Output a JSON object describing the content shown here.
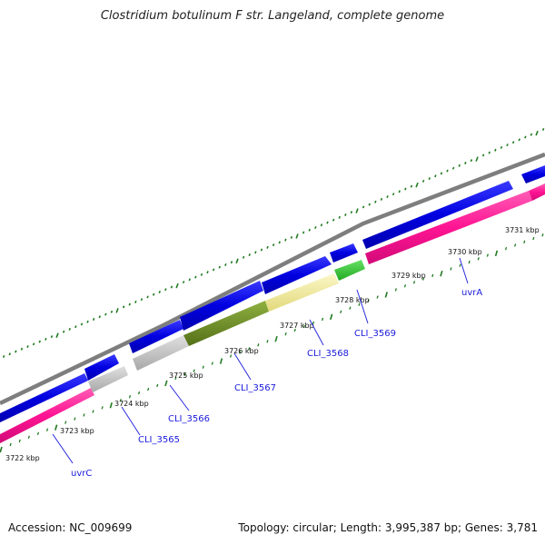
{
  "title": "Clostridium botulinum F str. Langeland, complete genome",
  "footer": {
    "accession": "Accession: NC_009699",
    "summary": "Topology: circular; Length: 3,995,387 bp; Genes: 3,781"
  },
  "colors": {
    "backbone": "#8a8a8a",
    "forward_gene": "#0a0ae6",
    "reverse_gene": "#ff1493",
    "hypothetical": "#c4c4c4",
    "cli_3567": "#6b8e23",
    "cli_3568": "#f2eb9a",
    "cli_3569": "#33cc33",
    "tick": "#1f7a1f",
    "label": "#1a1adc"
  },
  "kbp_labels": [
    "3722 kbp",
    "3723 kbp",
    "3724 kbp",
    "3725 kbp",
    "3726 kbp",
    "3727 kbp",
    "3728 kbp",
    "3729 kbp",
    "3730 kbp",
    "3731 kbp"
  ],
  "gene_labels": [
    "uvrC",
    "CLI_3565",
    "CLI_3566",
    "CLI_3567",
    "CLI_3568",
    "CLI_3569",
    "uvrA"
  ]
}
